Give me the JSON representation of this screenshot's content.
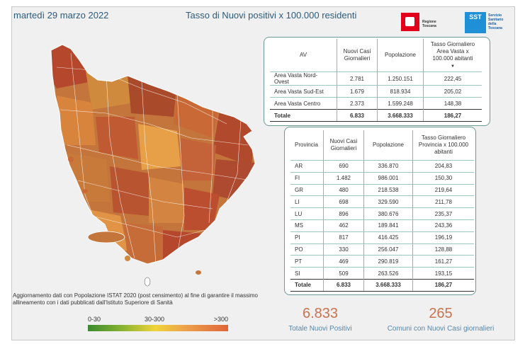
{
  "header": {
    "date": "martedì 29 marzo 2022",
    "title": "Tasso di Nuovi positivi x 100.000 residenti"
  },
  "logos": {
    "regione": "Regione Toscana",
    "sst_box": "SST",
    "sst_text": "Servizio Sanitario della Toscana"
  },
  "av_table": {
    "headers": [
      "AV",
      "Nuovi Casi Giornalieri",
      "Popolazione",
      "Tasso Giornaliero Area Vasta x 100.000 abitanti"
    ],
    "rows": [
      [
        "Area Vasta Nord-Ovest",
        "2.781",
        "1.250.151",
        "222,45"
      ],
      [
        "Area Vasta Sud-Est",
        "1.679",
        "818.934",
        "205,02"
      ],
      [
        "Area Vasta Centro",
        "2.373",
        "1.599.248",
        "148,38"
      ]
    ],
    "total": [
      "Totale",
      "6.833",
      "3.668.333",
      "186,27"
    ]
  },
  "prov_table": {
    "headers": [
      "Provincia",
      "Nuovi Casi Giornalieri",
      "Popolazione",
      "Tasso Giornaliero Provincia x 100.000 abitanti"
    ],
    "rows": [
      [
        "AR",
        "690",
        "336.870",
        "204,83"
      ],
      [
        "FI",
        "1.482",
        "986.001",
        "150,30"
      ],
      [
        "GR",
        "480",
        "218.538",
        "219,64"
      ],
      [
        "LI",
        "698",
        "329.590",
        "211,78"
      ],
      [
        "LU",
        "896",
        "380.676",
        "235,37"
      ],
      [
        "MS",
        "462",
        "189.841",
        "243,36"
      ],
      [
        "PI",
        "817",
        "416.425",
        "196,19"
      ],
      [
        "PO",
        "330",
        "256.047",
        "128,88"
      ],
      [
        "PT",
        "469",
        "290.819",
        "161,27"
      ],
      [
        "SI",
        "509",
        "263.526",
        "193,15"
      ]
    ],
    "total": [
      "Totale",
      "6.833",
      "3.668.333",
      "186,27"
    ]
  },
  "note": "Aggiornamento dati con Popolazione ISTAT 2020 (post censimento) al fine di garantire il massimo allineamento con i dati pubblicati dall'Istituto Superiore di Sanità",
  "legend": {
    "low": "0-30",
    "mid": "30-300",
    "high": ">300"
  },
  "kpis": {
    "positivi_value": "6.833",
    "positivi_label": "Totale Nuovi Positivi",
    "comuni_value": "265",
    "comuni_label": "Comuni con Nuovi Casi giornalieri"
  },
  "colors": {
    "map_fill": "#c4753b",
    "map_dark": "#b5482c",
    "map_light": "#e8a048",
    "accent": "#c8734e",
    "label": "#5b86a4"
  }
}
